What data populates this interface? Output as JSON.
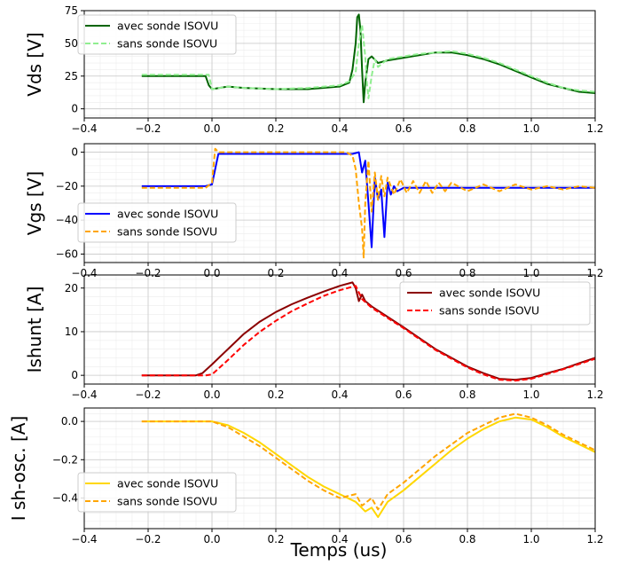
{
  "figure": {
    "xlabel": "Temps (us)"
  },
  "chart_data": [
    {
      "type": "line",
      "ylabel": "Vds [V]",
      "xlim": [
        -0.4,
        1.2
      ],
      "ylim": [
        -7,
        75
      ],
      "xticks": [
        -0.4,
        -0.2,
        0.0,
        0.2,
        0.4,
        0.6,
        0.8,
        1.0,
        1.2
      ],
      "xtick_labels": [
        "−0.4",
        "−0.2",
        "0.0",
        "0.2",
        "0.4",
        "0.6",
        "0.8",
        "1.0",
        "1.2"
      ],
      "yticks": [
        0,
        25,
        50,
        75
      ],
      "ytick_labels": [
        "0",
        "25",
        "50",
        "75"
      ],
      "grid": true,
      "legend_position": "top-left",
      "series": [
        {
          "name": "avec sonde ISOVU",
          "color": "#006400",
          "dash": "solid",
          "x": [
            -0.22,
            -0.1,
            -0.02,
            -0.01,
            0.0,
            0.05,
            0.1,
            0.2,
            0.3,
            0.4,
            0.43,
            0.44,
            0.45,
            0.455,
            0.46,
            0.465,
            0.47,
            0.475,
            0.48,
            0.49,
            0.5,
            0.52,
            0.55,
            0.6,
            0.65,
            0.7,
            0.75,
            0.8,
            0.85,
            0.9,
            0.95,
            1.0,
            1.05,
            1.1,
            1.15,
            1.2
          ],
          "y": [
            25,
            25,
            25,
            18,
            15,
            17,
            16,
            15,
            15,
            17,
            20,
            30,
            50,
            70,
            72,
            60,
            30,
            5,
            20,
            38,
            40,
            35,
            37,
            39,
            41,
            43,
            43,
            41,
            38,
            34,
            29,
            24,
            19,
            16,
            13,
            12
          ]
        },
        {
          "name": "sans sonde ISOVU",
          "color": "#90ee90",
          "dash": "dashed",
          "x": [
            -0.22,
            -0.1,
            -0.01,
            0.0,
            0.05,
            0.1,
            0.2,
            0.3,
            0.4,
            0.43,
            0.45,
            0.46,
            0.47,
            0.48,
            0.485,
            0.49,
            0.5,
            0.51,
            0.52,
            0.55,
            0.6,
            0.65,
            0.7,
            0.75,
            0.8,
            0.85,
            0.9,
            0.95,
            1.0,
            1.05,
            1.1,
            1.15,
            1.2
          ],
          "y": [
            26,
            26,
            26,
            15,
            17,
            16,
            15,
            16,
            18,
            21,
            28,
            50,
            64,
            40,
            20,
            8,
            25,
            38,
            32,
            38,
            40,
            42,
            43,
            44,
            42,
            39,
            35,
            30,
            25,
            20,
            16,
            14,
            13
          ]
        }
      ]
    },
    {
      "type": "line",
      "ylabel": "Vgs [V]",
      "xlim": [
        -0.4,
        1.2
      ],
      "ylim": [
        -65,
        5
      ],
      "xticks": [
        -0.4,
        -0.2,
        0.0,
        0.2,
        0.4,
        0.6,
        0.8,
        1.0,
        1.2
      ],
      "xtick_labels": [
        "−0.4",
        "−0.2",
        "0.0",
        "0.2",
        "0.4",
        "0.6",
        "0.8",
        "1.0",
        "1.2"
      ],
      "yticks": [
        0,
        -20,
        -40,
        -60
      ],
      "ytick_labels": [
        "0",
        "−20",
        "−40",
        "−60"
      ],
      "grid": true,
      "legend_position": "bottom-left",
      "series": [
        {
          "name": "avec sonde ISOVU",
          "color": "#0000ff",
          "dash": "solid",
          "x": [
            -0.22,
            -0.02,
            0.0,
            0.02,
            0.1,
            0.2,
            0.3,
            0.4,
            0.44,
            0.46,
            0.47,
            0.48,
            0.49,
            0.5,
            0.51,
            0.52,
            0.53,
            0.54,
            0.55,
            0.56,
            0.57,
            0.58,
            0.6,
            0.65,
            0.7,
            0.8,
            0.9,
            1.0,
            1.1,
            1.2
          ],
          "y": [
            -20,
            -20,
            -19,
            -1,
            -1,
            -1,
            -1,
            -1,
            -1,
            0,
            -12,
            -5,
            -30,
            -56,
            -15,
            -28,
            -22,
            -50,
            -18,
            -25,
            -20,
            -23,
            -21,
            -21,
            -21,
            -21,
            -21,
            -21,
            -21,
            -21
          ]
        },
        {
          "name": "sans sonde ISOVU",
          "color": "#ffa500",
          "dash": "dashed",
          "x": [
            -0.22,
            -0.02,
            0.0,
            0.01,
            0.02,
            0.1,
            0.2,
            0.3,
            0.4,
            0.42,
            0.44,
            0.45,
            0.46,
            0.47,
            0.475,
            0.48,
            0.49,
            0.5,
            0.51,
            0.52,
            0.53,
            0.54,
            0.55,
            0.57,
            0.59,
            0.61,
            0.63,
            0.65,
            0.67,
            0.69,
            0.71,
            0.73,
            0.75,
            0.8,
            0.85,
            0.9,
            0.95,
            1.0,
            1.05,
            1.1,
            1.15,
            1.2
          ],
          "y": [
            -21,
            -21,
            -18,
            2,
            0,
            0,
            0,
            0,
            0,
            0,
            -2,
            -10,
            -30,
            -45,
            -62,
            -30,
            -5,
            -35,
            -12,
            -28,
            -14,
            -26,
            -15,
            -25,
            -16,
            -24,
            -17,
            -24,
            -17,
            -24,
            -18,
            -23,
            -18,
            -23,
            -19,
            -23,
            -19,
            -22,
            -20,
            -22,
            -20,
            -21
          ]
        }
      ]
    },
    {
      "type": "line",
      "ylabel": "Ishunt [A]",
      "xlim": [
        -0.4,
        1.2
      ],
      "ylim": [
        -2,
        23
      ],
      "xticks": [
        -0.4,
        -0.2,
        0.0,
        0.2,
        0.4,
        0.6,
        0.8,
        1.0,
        1.2
      ],
      "xtick_labels": [
        "−0.4",
        "−0.2",
        "0.0",
        "0.2",
        "0.4",
        "0.6",
        "0.8",
        "1.0",
        "1.2"
      ],
      "yticks": [
        0,
        10,
        20
      ],
      "ytick_labels": [
        "0",
        "10",
        "20"
      ],
      "grid": true,
      "legend_position": "top-right",
      "series": [
        {
          "name": "avec sonde ISOVU",
          "color": "#8b0000",
          "dash": "solid",
          "x": [
            -0.22,
            -0.05,
            -0.03,
            0.0,
            0.05,
            0.1,
            0.15,
            0.2,
            0.25,
            0.3,
            0.35,
            0.4,
            0.44,
            0.45,
            0.46,
            0.47,
            0.48,
            0.5,
            0.6,
            0.7,
            0.8,
            0.85,
            0.9,
            0.95,
            1.0,
            1.05,
            1.1,
            1.15,
            1.2
          ],
          "y": [
            0,
            0,
            0.5,
            2.5,
            6,
            9.5,
            12.3,
            14.5,
            16.3,
            17.8,
            19.2,
            20.5,
            21.3,
            20,
            17,
            18.5,
            17,
            15.8,
            11,
            6,
            2,
            0.5,
            -0.8,
            -1,
            -0.6,
            0.5,
            1.5,
            2.8,
            4
          ]
        },
        {
          "name": "sans sonde ISOVU",
          "color": "#ff0000",
          "dash": "dashed",
          "x": [
            -0.22,
            -0.02,
            0.0,
            0.05,
            0.1,
            0.15,
            0.2,
            0.25,
            0.3,
            0.35,
            0.4,
            0.45,
            0.46,
            0.47,
            0.48,
            0.5,
            0.6,
            0.7,
            0.8,
            0.85,
            0.9,
            0.95,
            1.0,
            1.05,
            1.1,
            1.15,
            1.2
          ],
          "y": [
            0,
            0,
            0.2,
            3.5,
            7,
            10,
            12.5,
            14.7,
            16.5,
            18.2,
            19.5,
            20.5,
            19,
            17.5,
            16.8,
            15.5,
            10.8,
            5.8,
            1.8,
            0.2,
            -1,
            -1.2,
            -0.8,
            0.3,
            1.4,
            2.6,
            3.8
          ]
        }
      ]
    },
    {
      "type": "line",
      "ylabel": "I sh-osc. [A]",
      "xlim": [
        -0.4,
        1.2
      ],
      "ylim": [
        -0.56,
        0.07
      ],
      "xticks": [
        -0.4,
        -0.2,
        0.0,
        0.2,
        0.4,
        0.6,
        0.8,
        1.0,
        1.2
      ],
      "xtick_labels": [
        "−0.4",
        "−0.2",
        "0.0",
        "0.2",
        "0.4",
        "0.6",
        "0.8",
        "1.0",
        "1.2"
      ],
      "yticks": [
        0.0,
        -0.2,
        -0.4
      ],
      "ytick_labels": [
        "0.0",
        "−0.2",
        "−0.4"
      ],
      "grid": true,
      "legend_position": "bottom-left",
      "series": [
        {
          "name": "avec sonde ISOVU",
          "color": "#ffd700",
          "dash": "solid",
          "x": [
            -0.22,
            -0.1,
            0.0,
            0.05,
            0.1,
            0.15,
            0.2,
            0.25,
            0.3,
            0.35,
            0.4,
            0.45,
            0.48,
            0.5,
            0.52,
            0.55,
            0.6,
            0.65,
            0.7,
            0.75,
            0.8,
            0.85,
            0.9,
            0.95,
            1.0,
            1.05,
            1.1,
            1.15,
            1.2
          ],
          "y": [
            0,
            0,
            0,
            -0.02,
            -0.06,
            -0.11,
            -0.17,
            -0.23,
            -0.29,
            -0.34,
            -0.38,
            -0.42,
            -0.47,
            -0.45,
            -0.5,
            -0.42,
            -0.36,
            -0.29,
            -0.22,
            -0.15,
            -0.09,
            -0.04,
            0,
            0.02,
            0.01,
            -0.03,
            -0.08,
            -0.12,
            -0.16
          ]
        },
        {
          "name": "sans sonde ISOVU",
          "color": "#ffa500",
          "dash": "dashed",
          "x": [
            -0.22,
            -0.1,
            0.0,
            0.05,
            0.1,
            0.15,
            0.2,
            0.25,
            0.3,
            0.35,
            0.4,
            0.45,
            0.47,
            0.5,
            0.52,
            0.55,
            0.6,
            0.65,
            0.7,
            0.75,
            0.8,
            0.85,
            0.9,
            0.95,
            1.0,
            1.05,
            1.1,
            1.15,
            1.2
          ],
          "y": [
            0,
            0,
            0,
            -0.03,
            -0.08,
            -0.13,
            -0.19,
            -0.25,
            -0.31,
            -0.36,
            -0.4,
            -0.38,
            -0.44,
            -0.4,
            -0.46,
            -0.38,
            -0.32,
            -0.25,
            -0.18,
            -0.12,
            -0.06,
            -0.02,
            0.02,
            0.04,
            0.02,
            -0.02,
            -0.07,
            -0.11,
            -0.15
          ]
        }
      ]
    }
  ]
}
